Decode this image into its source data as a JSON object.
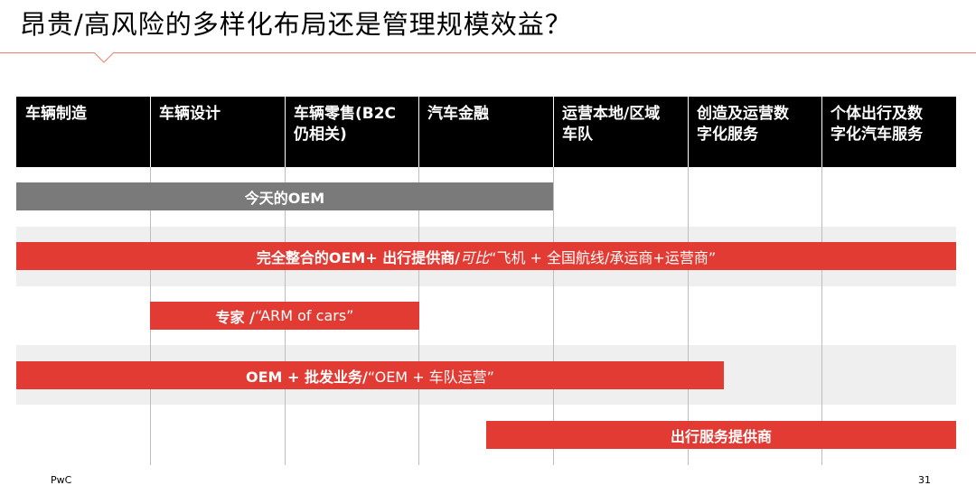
{
  "title": "昂贵/高风险的多样化布局还是管理规模效益？",
  "columns": [
    {
      "line1": "车辆制造",
      "line2": ""
    },
    {
      "line1": "车辆设计",
      "line2": ""
    },
    {
      "line1": "车辆零售(B2C",
      "line2": "仍相关)"
    },
    {
      "line1": "汽车金融",
      "line2": ""
    },
    {
      "line1": "运营本地/区域",
      "line2": "车队"
    },
    {
      "line1": "创造及运营数",
      "line2": "字化服务"
    },
    {
      "line1": "个体出行及数",
      "line2": "字化汽车服务"
    }
  ],
  "bars": {
    "oem_today": {
      "label": "今天的OEM"
    },
    "integrated": {
      "bold": "完全整合的OEM+ 出行提供商/ ",
      "italic": "可比",
      "normal": "“飞机 + 全国航线/承运商+运营商”"
    },
    "expert": {
      "bold": "专家 / ",
      "normal": "“ARM of cars”"
    },
    "wholesale": {
      "bold": "OEM + 批发业务/ ",
      "normal": "“OEM + 车队运营”"
    },
    "mobility": {
      "label": "出行服务提供商"
    }
  },
  "colors": {
    "accent_red": "#e23b33",
    "grey_bar": "#7a7a7a",
    "header_bg": "#000000"
  },
  "footer": {
    "brand": "PwC",
    "page": "31"
  }
}
